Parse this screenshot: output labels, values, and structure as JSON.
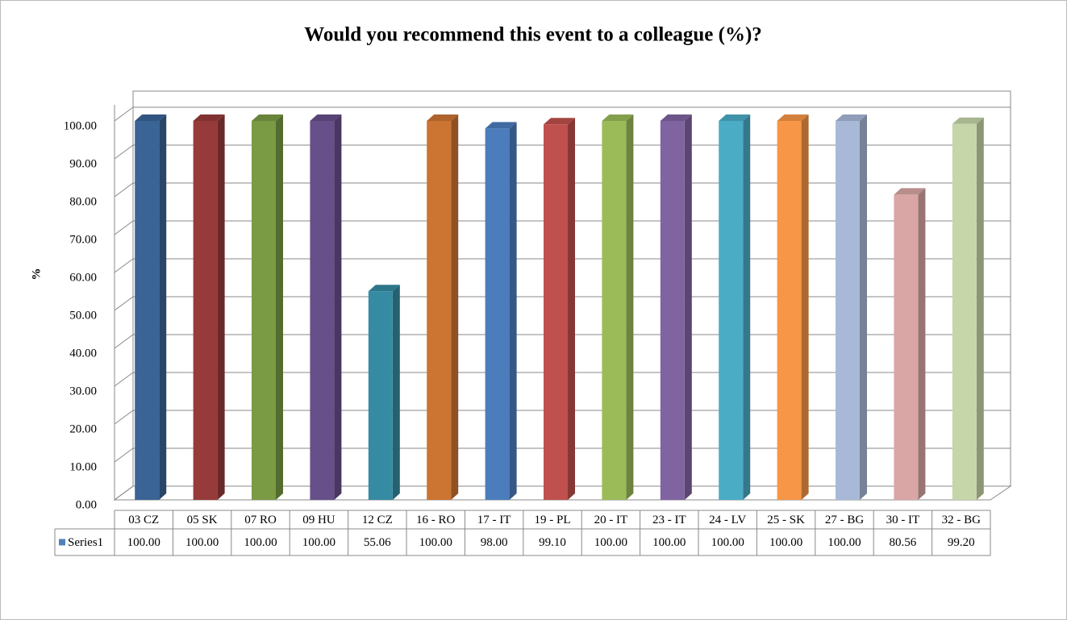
{
  "chart_data": {
    "type": "bar3d",
    "title": "Would you recommend this event to a colleague (%)?",
    "y_label": "%",
    "categories": [
      "03 CZ",
      "05 SK",
      "07 RO",
      "09 HU",
      "12 CZ",
      "16 - RO",
      "17 - IT",
      "19 - PL",
      "20 - IT",
      "23 - IT",
      "24 - LV",
      "25 - SK",
      "27 - BG",
      "30 - IT",
      "32 - BG"
    ],
    "series": [
      {
        "name": "Series1",
        "color": "#4f81bd",
        "colors": [
          "#3a6496",
          "#973b3a",
          "#7a9a44",
          "#674f8a",
          "#358ba2",
          "#cc7432",
          "#4b7dbd",
          "#c0504d",
          "#9bbb59",
          "#8064a2",
          "#4bacc6",
          "#f79646",
          "#a8b9d8",
          "#d9a6a5",
          "#c6d6a8"
        ],
        "values": [
          100,
          100,
          100,
          100,
          55.06,
          100,
          98,
          99.1,
          100,
          100,
          100,
          100,
          100,
          80.56,
          99.2
        ],
        "value_labels": [
          "100.00",
          "100.00",
          "100.00",
          "100.00",
          "55.06",
          "100.00",
          "98.00",
          "99.10",
          "100.00",
          "100.00",
          "100.00",
          "100.00",
          "100.00",
          "80.56",
          "99.20"
        ]
      }
    ],
    "ylim": [
      0,
      100
    ],
    "yticks": [
      {
        "value": 0,
        "label": "0.00"
      },
      {
        "value": 10,
        "label": "10.00"
      },
      {
        "value": 20,
        "label": "20.00"
      },
      {
        "value": 30,
        "label": "30.00"
      },
      {
        "value": 40,
        "label": "40.00"
      },
      {
        "value": 50,
        "label": "50.00"
      },
      {
        "value": 60,
        "label": "60.00"
      },
      {
        "value": 70,
        "label": "70.00"
      },
      {
        "value": 80,
        "label": "80.00"
      },
      {
        "value": 90,
        "label": "90.00"
      },
      {
        "value": 100,
        "label": "100.00"
      }
    ],
    "grid": true,
    "data_table": true
  }
}
